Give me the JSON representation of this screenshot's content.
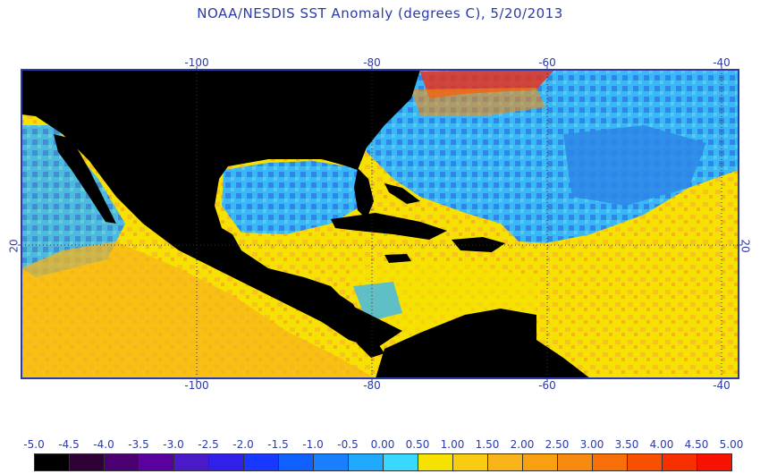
{
  "title": "NOAA/NESDIS SST Anomaly (degrees C), 5/20/2013",
  "map": {
    "lon_ticks": [
      "-100",
      "-80",
      "-60",
      "-40"
    ],
    "lat_ticks": [
      "20"
    ],
    "colors": {
      "land": "#000000",
      "frame": "#2a3aa8",
      "grid": "#333333",
      "near_zero_warm": "#f5e200",
      "warm_orange": "#f7b41a",
      "cool_light_blue": "#38b8f5",
      "cool_blue": "#2e86e8",
      "hot": "#e8301a"
    }
  },
  "colorbar": {
    "labels": [
      "-5.0",
      "-4.5",
      "-4.0",
      "-3.5",
      "-3.0",
      "-2.5",
      "-2.0",
      "-1.5",
      "-1.0",
      "-0.5",
      "0.00",
      "0.50",
      "1.00",
      "1.50",
      "2.00",
      "2.50",
      "3.00",
      "3.50",
      "4.00",
      "4.50",
      "5.00"
    ],
    "colors": [
      "#000000",
      "#2e0036",
      "#4a0070",
      "#5a00a0",
      "#4a1ac8",
      "#3020e8",
      "#1838ff",
      "#1060ff",
      "#1880ff",
      "#20aaff",
      "#38d8ff",
      "#f5e200",
      "#f8cc10",
      "#f8b418",
      "#f8a010",
      "#f88a10",
      "#f86e08",
      "#f85000",
      "#f83000",
      "#f81000"
    ]
  }
}
